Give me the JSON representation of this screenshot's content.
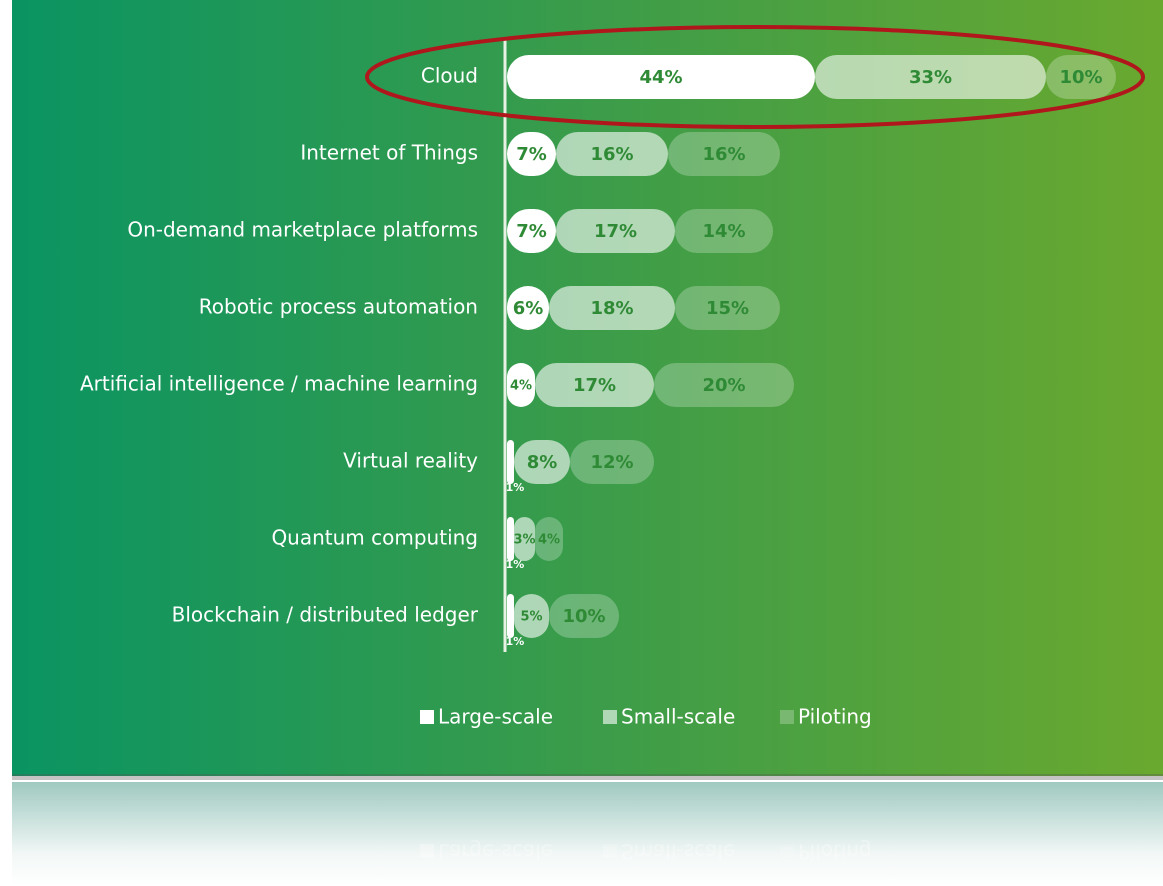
{
  "chart_data": {
    "type": "stacked-bar-horizontal",
    "categories": [
      "Cloud",
      "Internet of Things",
      "On-demand marketplace platforms",
      "Robotic process automation",
      "Artificial intelligence / machine learning",
      "Virtual reality",
      "Quantum computing",
      "Blockchain / distributed ledger"
    ],
    "series": [
      {
        "name": "Large-scale",
        "color": "#ffffff",
        "values": [
          44,
          7,
          7,
          6,
          4,
          1,
          1,
          1
        ],
        "value_labels": [
          "44%",
          "7%",
          "7%",
          "6%",
          "4%",
          "1%",
          "1%",
          "1%"
        ]
      },
      {
        "name": "Small-scale",
        "color": "rgba(255,255,255,0.6)",
        "values": [
          33,
          16,
          17,
          18,
          17,
          8,
          3,
          5
        ],
        "value_labels": [
          "33%",
          "16%",
          "17%",
          "18%",
          "17%",
          "8%",
          "3%",
          "5%"
        ]
      },
      {
        "name": "Piloting",
        "color": "rgba(255,255,255,0.25)",
        "values": [
          10,
          16,
          14,
          15,
          20,
          12,
          4,
          10
        ],
        "value_labels": [
          "10%",
          "16%",
          "14%",
          "15%",
          "20%",
          "12%",
          "4%",
          "10%"
        ]
      }
    ]
  }
}
